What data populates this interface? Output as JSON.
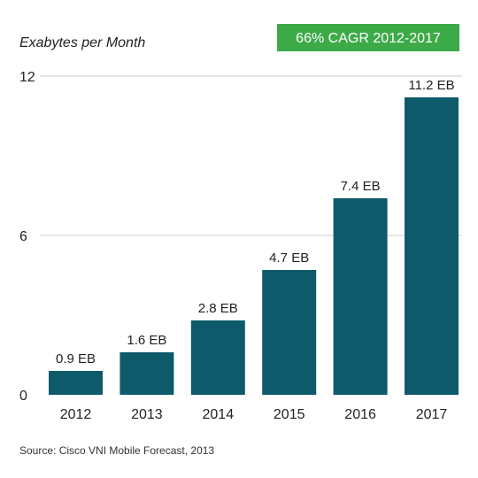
{
  "chart_data": {
    "type": "bar",
    "ylabel": "Exabytes per Month",
    "categories": [
      "2012",
      "2013",
      "2014",
      "2015",
      "2016",
      "2017"
    ],
    "values": [
      0.9,
      1.6,
      2.8,
      4.7,
      7.4,
      11.2
    ],
    "data_labels": [
      "0.9 EB",
      "1.6 EB",
      "2.8 EB",
      "4.7 EB",
      "7.4 EB",
      "11.2 EB"
    ],
    "yticks": [
      0,
      6,
      12
    ],
    "ylim": [
      0,
      12
    ],
    "grid": true,
    "annotation": "66% CAGR 2012-2017",
    "source": "Source: Cisco VNI Mobile Forecast, 2013"
  },
  "colors": {
    "bar": "#0d5a6b",
    "badge": "#3daa48",
    "grid": "#cccccc"
  }
}
